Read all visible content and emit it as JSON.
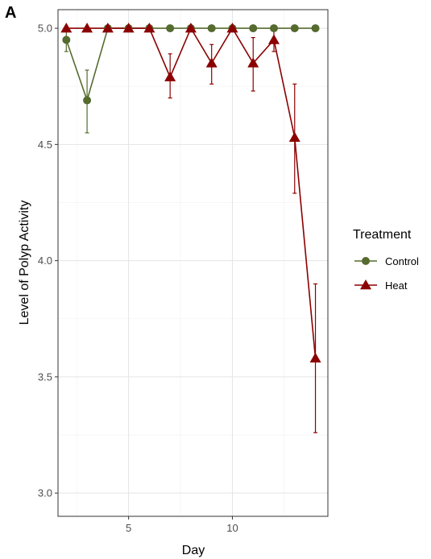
{
  "panel_label": "A",
  "chart_data": {
    "type": "line",
    "xlabel": "Day",
    "ylabel": "Level of Polyp Activity",
    "xlim": [
      1.6,
      14.6
    ],
    "ylim": [
      2.9,
      5.08
    ],
    "x_ticks": [
      5,
      10
    ],
    "x_tick_labels": [
      "5",
      "10"
    ],
    "x_minor_ticks": [
      2.5,
      7.5,
      12.5
    ],
    "y_ticks": [
      3.0,
      3.5,
      4.0,
      4.5,
      5.0
    ],
    "y_tick_labels": [
      "3.0",
      "3.5",
      "4.0",
      "4.5",
      "5.0"
    ],
    "y_minor_ticks": [
      3.25,
      3.75,
      4.25,
      4.75
    ],
    "grid": true,
    "legend": {
      "title": "Treatment",
      "position": "right",
      "entries": [
        {
          "name": "Control",
          "color": "#556b2f",
          "marker": "circle"
        },
        {
          "name": "Heat",
          "color": "#8b0000",
          "marker": "triangle"
        }
      ]
    },
    "series": [
      {
        "name": "Control",
        "color": "#556b2f",
        "marker": "circle",
        "points": [
          {
            "x": 2,
            "y": 4.95,
            "lo": 4.9,
            "hi": 5.0
          },
          {
            "x": 3,
            "y": 4.69,
            "lo": 4.55,
            "hi": 4.82
          },
          {
            "x": 4,
            "y": 5.0
          },
          {
            "x": 5,
            "y": 5.0
          },
          {
            "x": 6,
            "y": 5.0
          },
          {
            "x": 7,
            "y": 5.0
          },
          {
            "x": 8,
            "y": 5.0
          },
          {
            "x": 9,
            "y": 5.0
          },
          {
            "x": 10,
            "y": 5.0
          },
          {
            "x": 11,
            "y": 5.0
          },
          {
            "x": 12,
            "y": 5.0
          },
          {
            "x": 13,
            "y": 5.0
          },
          {
            "x": 14,
            "y": 5.0
          }
        ]
      },
      {
        "name": "Heat",
        "color": "#8b0000",
        "marker": "triangle",
        "points": [
          {
            "x": 2,
            "y": 5.0
          },
          {
            "x": 3,
            "y": 5.0
          },
          {
            "x": 4,
            "y": 5.0
          },
          {
            "x": 5,
            "y": 5.0
          },
          {
            "x": 6,
            "y": 5.0
          },
          {
            "x": 7,
            "y": 4.79,
            "lo": 4.7,
            "hi": 4.89
          },
          {
            "x": 8,
            "y": 5.0
          },
          {
            "x": 9,
            "y": 4.85,
            "lo": 4.76,
            "hi": 4.93
          },
          {
            "x": 10,
            "y": 5.0
          },
          {
            "x": 11,
            "y": 4.85,
            "lo": 4.73,
            "hi": 4.96
          },
          {
            "x": 12,
            "y": 4.95,
            "lo": 4.9,
            "hi": 5.0
          },
          {
            "x": 13,
            "y": 4.53,
            "lo": 4.29,
            "hi": 4.76
          },
          {
            "x": 14,
            "y": 3.58,
            "lo": 3.26,
            "hi": 3.9
          }
        ]
      }
    ]
  }
}
